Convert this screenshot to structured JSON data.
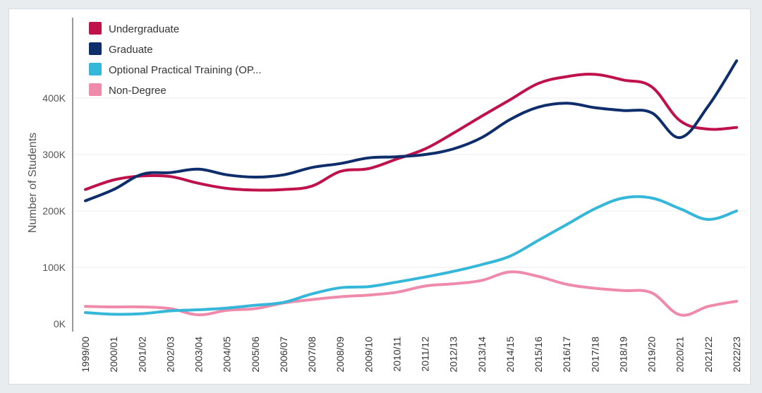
{
  "chart_data": {
    "type": "line",
    "title": "",
    "xlabel": "",
    "ylabel": "Number of Students",
    "ylim": [
      0,
      480000
    ],
    "y_ticks": [
      {
        "value": 0,
        "label": "0K"
      },
      {
        "value": 100000,
        "label": "100K"
      },
      {
        "value": 200000,
        "label": "200K"
      },
      {
        "value": 300000,
        "label": "300K"
      },
      {
        "value": 400000,
        "label": "400K"
      }
    ],
    "grid": true,
    "legend_position": "top-left",
    "categories": [
      "1999/00",
      "2000/01",
      "2001/02",
      "2002/03",
      "2003/04",
      "2004/05",
      "2005/06",
      "2006/07",
      "2007/08",
      "2008/09",
      "2009/10",
      "2010/11",
      "2011/12",
      "2012/13",
      "2013/14",
      "2014/15",
      "2015/16",
      "2016/17",
      "2017/18",
      "2018/19",
      "2019/20",
      "2020/21",
      "2021/22",
      "2022/23"
    ],
    "series": [
      {
        "name": "Undergraduate",
        "color": "#c0124a",
        "values": [
          238000,
          255000,
          262000,
          261000,
          249000,
          240000,
          237000,
          238000,
          244000,
          270000,
          275000,
          292000,
          310000,
          338000,
          368000,
          397000,
          426000,
          438000,
          442000,
          432000,
          420000,
          360000,
          345000,
          348000
        ]
      },
      {
        "name": "Graduate",
        "color": "#0d2d6b",
        "values": [
          218000,
          238000,
          265000,
          268000,
          274000,
          264000,
          260000,
          264000,
          277000,
          284000,
          294000,
          296000,
          300000,
          310000,
          330000,
          362000,
          384000,
          391000,
          383000,
          378000,
          374000,
          330000,
          386000,
          466000
        ]
      },
      {
        "name": "Optional Practical Training (OP...",
        "color": "#35b7d9",
        "values": [
          20000,
          17000,
          18000,
          23000,
          25000,
          28000,
          33000,
          38000,
          53000,
          64000,
          66000,
          74000,
          83000,
          93000,
          105000,
          120000,
          148000,
          176000,
          204000,
          223000,
          223000,
          204000,
          185000,
          200000
        ]
      },
      {
        "name": "Non-Degree",
        "color": "#f08aab",
        "values": [
          31000,
          30000,
          30000,
          27000,
          16000,
          24000,
          27000,
          37000,
          43000,
          48000,
          51000,
          56000,
          67000,
          71000,
          77000,
          92000,
          84000,
          70000,
          63000,
          59000,
          55000,
          16000,
          31000,
          40000
        ]
      }
    ]
  }
}
